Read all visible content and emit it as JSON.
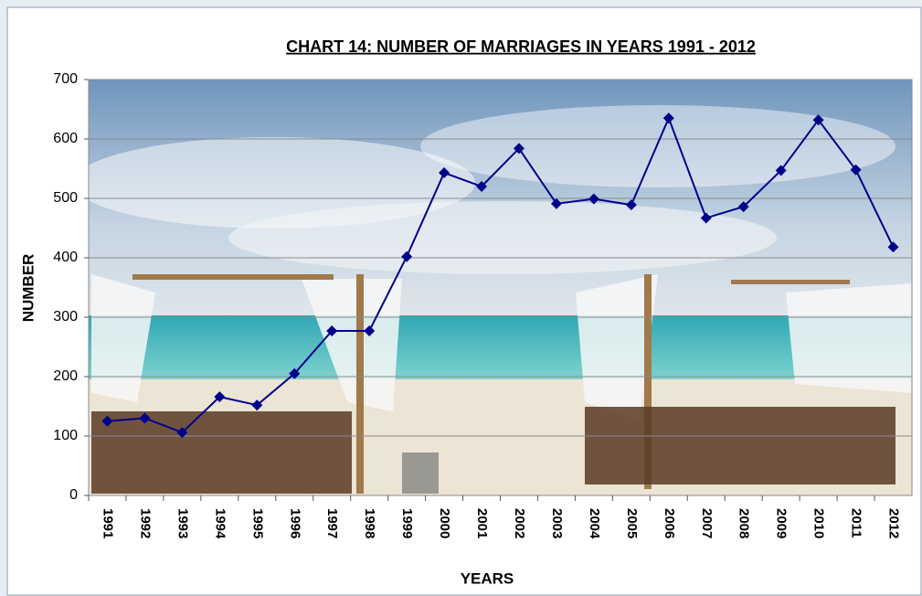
{
  "chart_data": {
    "type": "line",
    "title": "CHART 14: NUMBER OF MARRIAGES IN YEARS 1991 - 2012",
    "x_label": "YEARS",
    "y_label": "NUMBER",
    "categories": [
      "1991",
      "1992",
      "1993",
      "1994",
      "1995",
      "1996",
      "1997",
      "1998",
      "1999",
      "2000",
      "2001",
      "2002",
      "2003",
      "2004",
      "2005",
      "2006",
      "2007",
      "2008",
      "2009",
      "2010",
      "2011",
      "2012"
    ],
    "values": [
      125,
      130,
      106,
      166,
      152,
      205,
      277,
      277,
      402,
      543,
      520,
      584,
      491,
      499,
      489,
      635,
      467,
      486,
      547,
      632,
      548,
      418
    ],
    "color": "#00008b",
    "ylim": [
      0,
      700
    ],
    "yticks": [
      0,
      100,
      200,
      300,
      400,
      500,
      600,
      700
    ],
    "grid": true
  }
}
